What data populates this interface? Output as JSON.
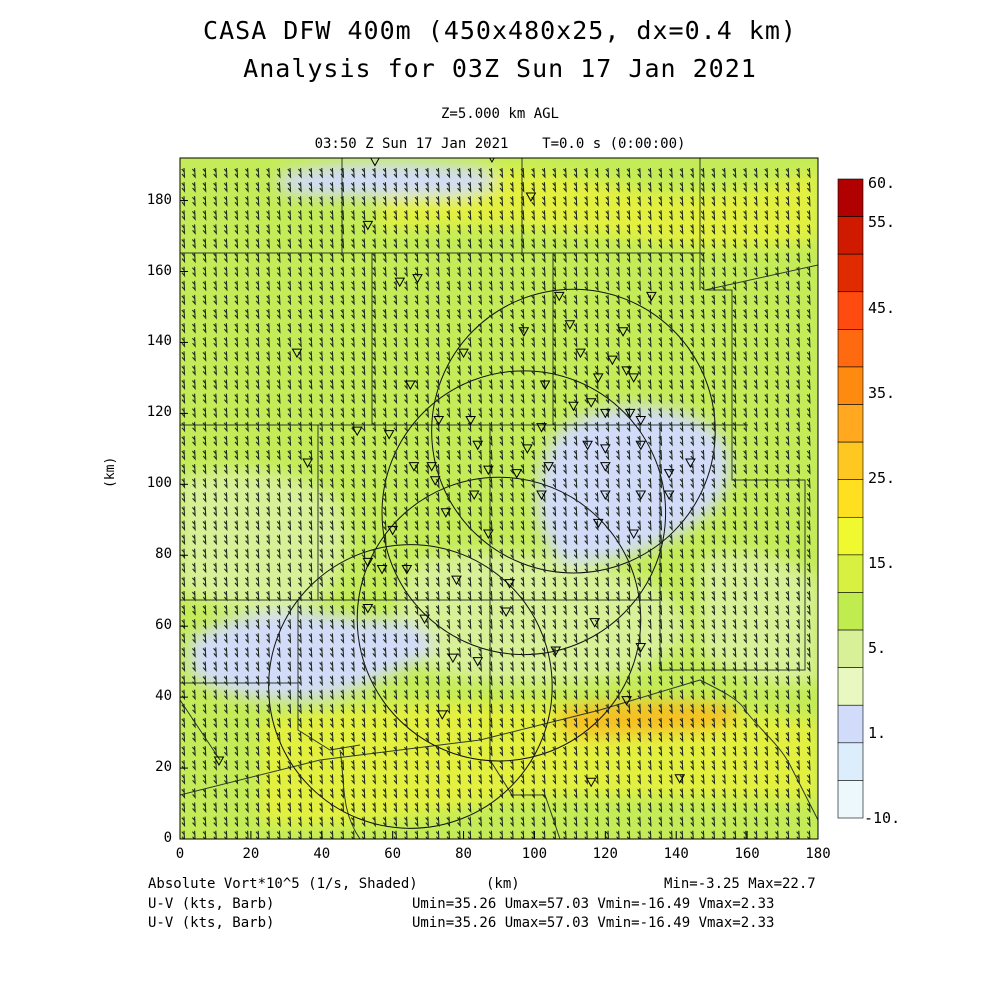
{
  "title": {
    "line1": "CASA DFW 400m (450x480x25, dx=0.4 km)",
    "line2": "Analysis for 03Z Sun 17 Jan 2021"
  },
  "subtitle": {
    "level": "Z=5.000 km AGL",
    "valid": "03:50 Z Sun 17 Jan 2021    T=0.0 s (0:00:00)"
  },
  "axes": {
    "x_label": "(km)",
    "y_label": "(km)",
    "x_ticks": [
      "0",
      "20",
      "40",
      "60",
      "80",
      "100",
      "120",
      "140",
      "160",
      "180"
    ],
    "y_ticks": [
      "0",
      "20",
      "40",
      "60",
      "80",
      "100",
      "120",
      "140",
      "160",
      "180"
    ],
    "x_range": [
      0,
      180
    ],
    "y_range": [
      0,
      192
    ]
  },
  "colorbar": {
    "labels": [
      "60.",
      "55.",
      "45.",
      "35.",
      "25.",
      "15.",
      "5.",
      "1.",
      "-10."
    ],
    "colors": [
      "#b00000",
      "#d01a00",
      "#e02a00",
      "#ff4a10",
      "#ff6a10",
      "#ff8a10",
      "#ffa820",
      "#ffc820",
      "#ffe020",
      "#f0f830",
      "#d8f040",
      "#c0ec50",
      "#d8f098",
      "#e8f8c0",
      "#d0dcfa",
      "#dceefc",
      "#ecf8fc"
    ]
  },
  "field_colors": {
    "background": "#c4ec58",
    "pale_blue": "#d2dcf8",
    "light_green": "#d8f098",
    "yellow_green": "#e4f040",
    "orange": "#f6c020"
  },
  "footer": {
    "field1": "Absolute Vort*10^5 (1/s, Shaded)",
    "field1_unit": "(km)",
    "minmax": "Min=-3.25 Max=22.7",
    "field2": "U-V (kts, Barb)",
    "field2_stats": "Umin=35.26 Umax=57.03 Vmin=-16.49 Vmax=2.33",
    "field3": "U-V (kts, Barb)",
    "field3_stats": "Umin=35.26 Umax=57.03 Vmin=-16.49 Vmax=2.33"
  },
  "map_data": {
    "radar_circles_km": [
      {
        "x": 65,
        "y": 43,
        "r": 40
      },
      {
        "x": 90,
        "y": 62,
        "r": 40
      },
      {
        "x": 97,
        "y": 92,
        "r": 40
      },
      {
        "x": 111,
        "y": 115,
        "r": 40
      }
    ],
    "observation_sites_km": [
      [
        88,
        192
      ],
      [
        55,
        191
      ],
      [
        53,
        173
      ],
      [
        99,
        181
      ],
      [
        62,
        157
      ],
      [
        67,
        158
      ],
      [
        107,
        153
      ],
      [
        133,
        153
      ],
      [
        110,
        145
      ],
      [
        97,
        143
      ],
      [
        125,
        143
      ],
      [
        33,
        137
      ],
      [
        80,
        137
      ],
      [
        113,
        137
      ],
      [
        122,
        135
      ],
      [
        126,
        132
      ],
      [
        118,
        130
      ],
      [
        128,
        130
      ],
      [
        65,
        128
      ],
      [
        103,
        128
      ],
      [
        120,
        120
      ],
      [
        116,
        123
      ],
      [
        127,
        120
      ],
      [
        111,
        122
      ],
      [
        73,
        118
      ],
      [
        82,
        118
      ],
      [
        102,
        116
      ],
      [
        130,
        118
      ],
      [
        59,
        114
      ],
      [
        50,
        115
      ],
      [
        84,
        111
      ],
      [
        98,
        110
      ],
      [
        115,
        111
      ],
      [
        120,
        110
      ],
      [
        130,
        111
      ],
      [
        36,
        106
      ],
      [
        66,
        105
      ],
      [
        71,
        105
      ],
      [
        87,
        104
      ],
      [
        104,
        105
      ],
      [
        120,
        105
      ],
      [
        138,
        103
      ],
      [
        72,
        101
      ],
      [
        95,
        103
      ],
      [
        144,
        106
      ],
      [
        83,
        97
      ],
      [
        102,
        97
      ],
      [
        120,
        97
      ],
      [
        130,
        97
      ],
      [
        138,
        97
      ],
      [
        75,
        92
      ],
      [
        87,
        86
      ],
      [
        60,
        87
      ],
      [
        118,
        89
      ],
      [
        128,
        86
      ],
      [
        53,
        78
      ],
      [
        64,
        76
      ],
      [
        57,
        76
      ],
      [
        78,
        73
      ],
      [
        93,
        72
      ],
      [
        53,
        65
      ],
      [
        69,
        62
      ],
      [
        92,
        64
      ],
      [
        117,
        61
      ],
      [
        130,
        54
      ],
      [
        77,
        51
      ],
      [
        106,
        53
      ],
      [
        84,
        50
      ],
      [
        126,
        39
      ],
      [
        74,
        35
      ],
      [
        11,
        22
      ],
      [
        116,
        16
      ],
      [
        141,
        17
      ]
    ]
  }
}
